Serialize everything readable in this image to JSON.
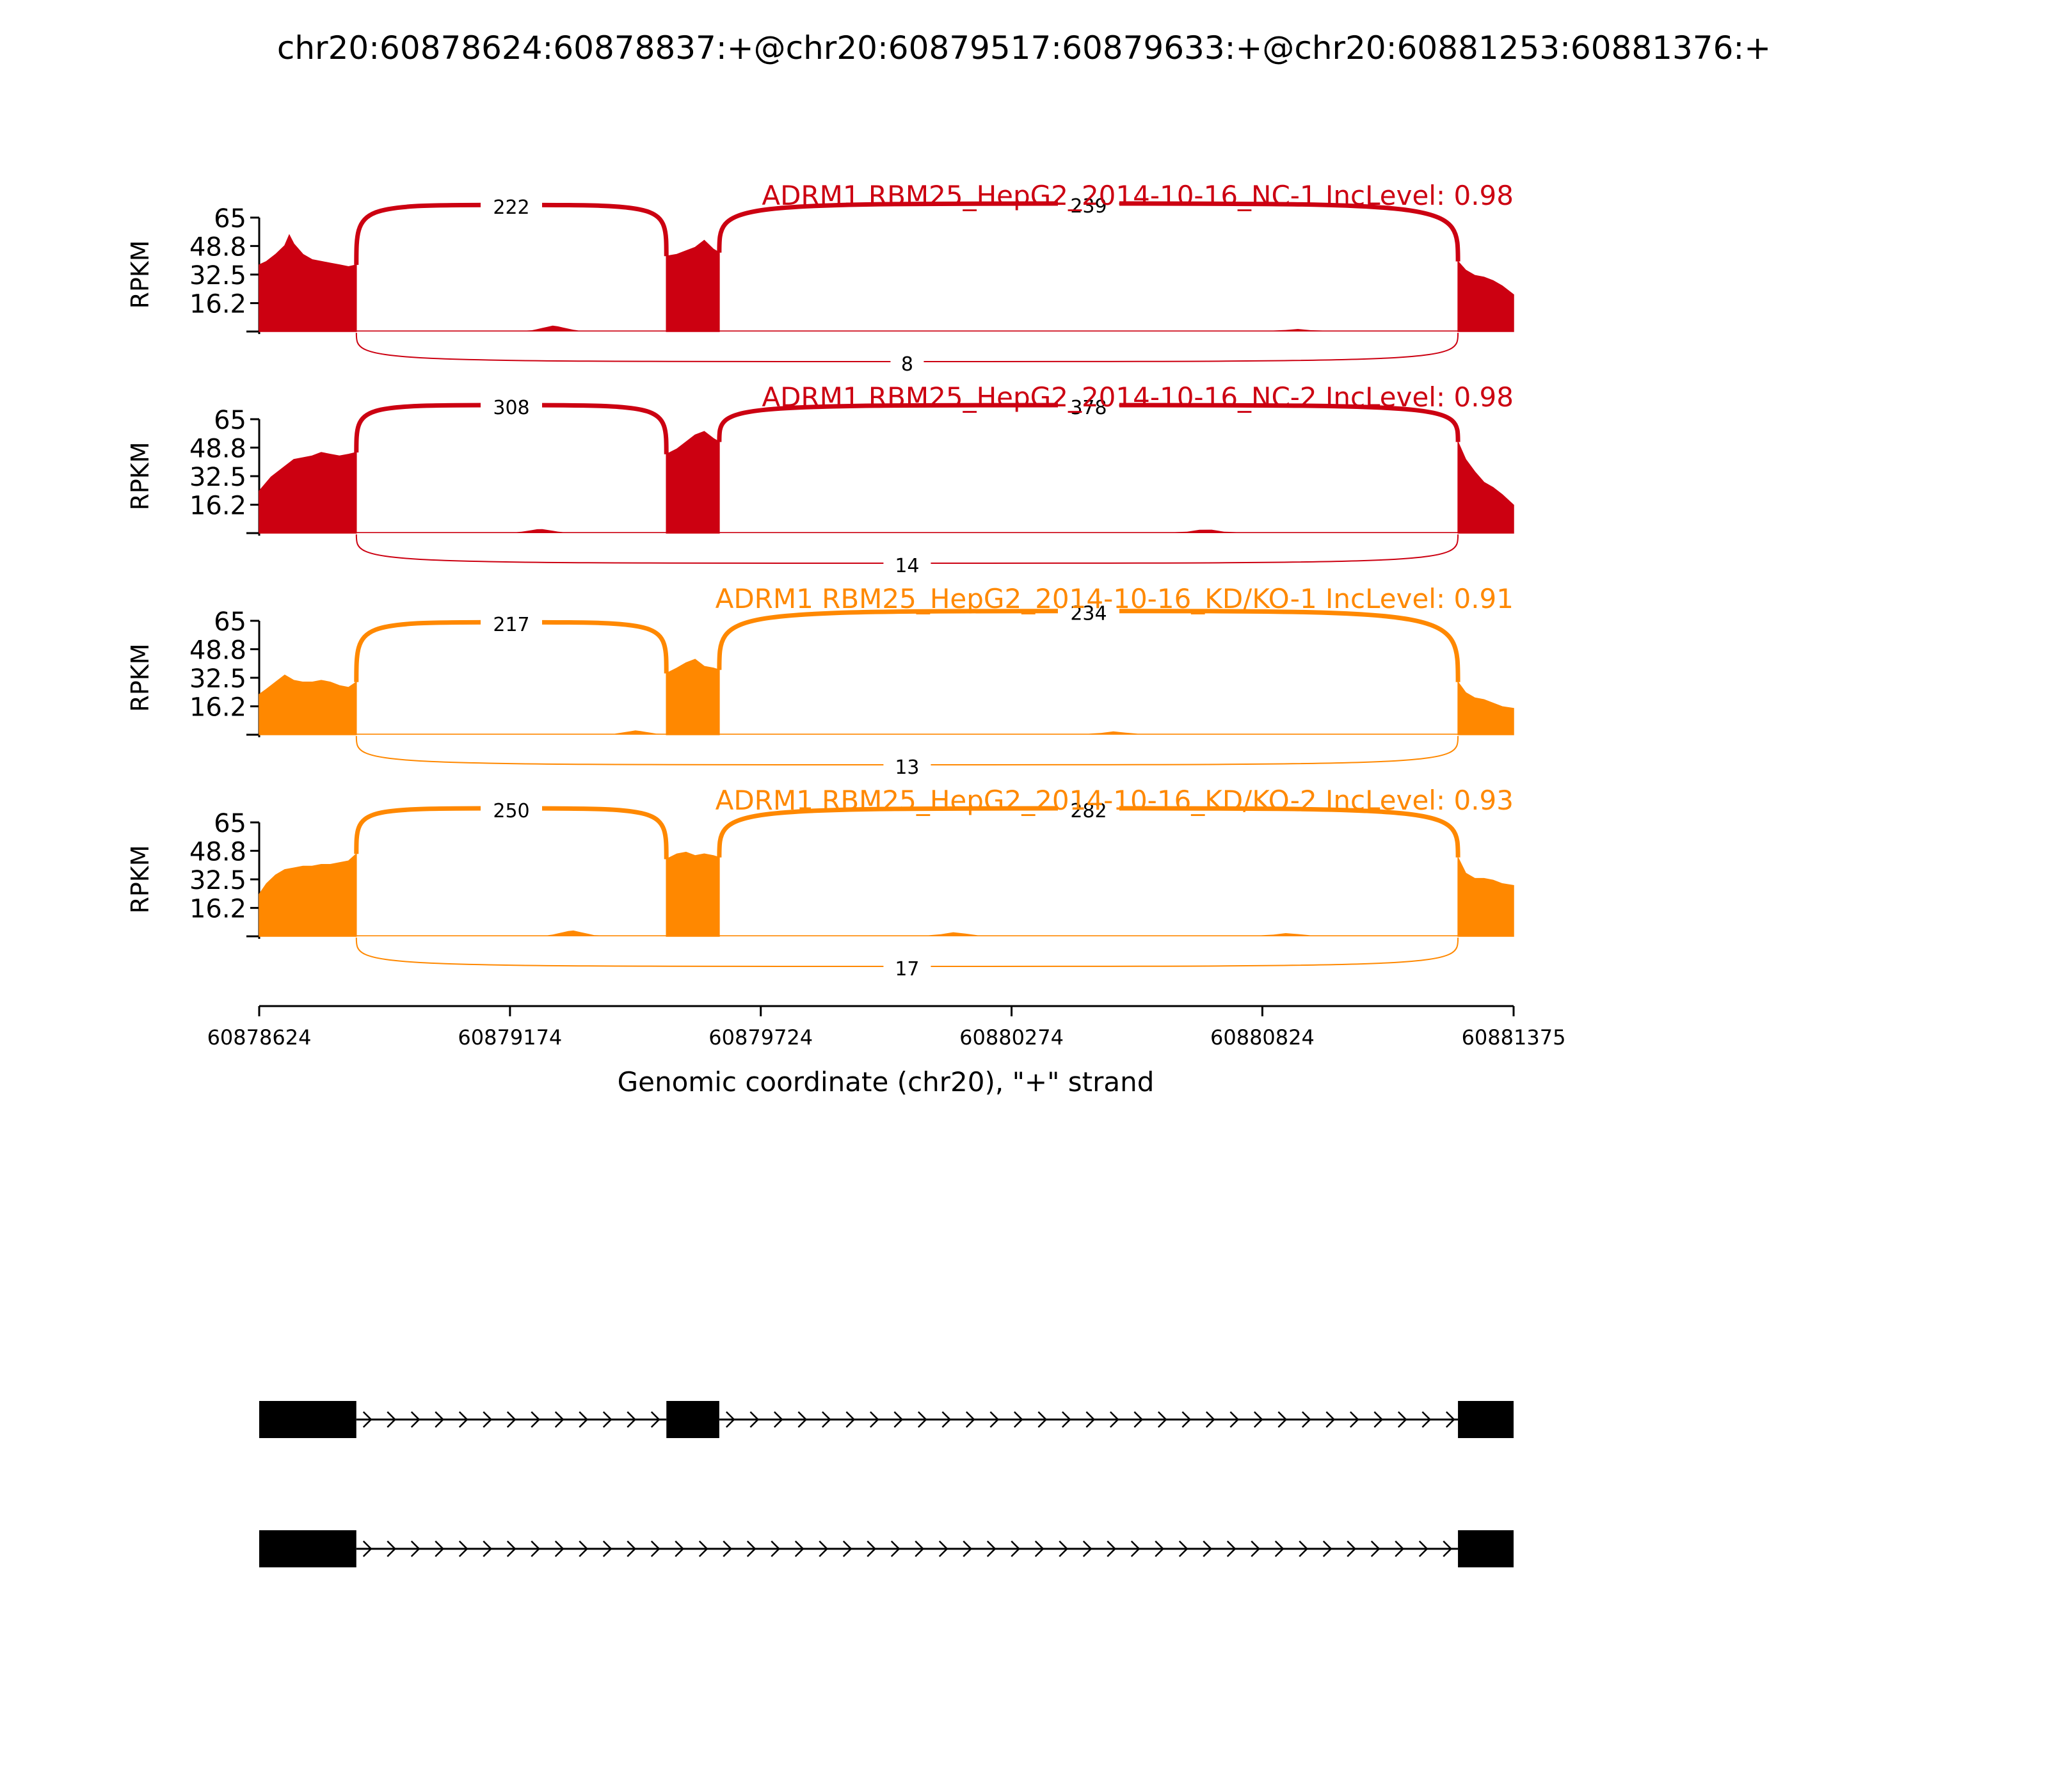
{
  "title": "chr20:60878624:60878837:+@chr20:60879517:60879633:+@chr20:60881253:60881376:+",
  "chart_data": {
    "type": "sashimi",
    "gene": "ADRM1",
    "x_range": [
      60878624,
      60881375
    ],
    "x_ticks": [
      60878624,
      60879174,
      60879724,
      60880274,
      60880824,
      60881375
    ],
    "xlabel": "Genomic coordinate (chr20), \"+\" strand",
    "ylabel": "RPKM",
    "y_ticks": [
      16.2,
      32.5,
      48.8,
      65
    ],
    "ylim": [
      0,
      65
    ],
    "exons": [
      [
        60878624,
        60878837
      ],
      [
        60879517,
        60879633
      ],
      [
        60881253,
        60881375
      ]
    ],
    "tracks": [
      {
        "label": "ADRM1 RBM25_HepG2_2014-10-16_NC-1 IncLevel: 0.98",
        "color": "#cc0011",
        "coverage": {
          "exon1": [
            [
              60878624,
              38
            ],
            [
              60878640,
              40
            ],
            [
              60878660,
              44
            ],
            [
              60878680,
              49
            ],
            [
              60878690,
              55
            ],
            [
              60878700,
              50
            ],
            [
              60878720,
              44
            ],
            [
              60878740,
              41
            ],
            [
              60878760,
              40
            ],
            [
              60878780,
              39
            ],
            [
              60878800,
              38
            ],
            [
              60878820,
              37
            ],
            [
              60878837,
              38
            ]
          ],
          "exon2": [
            [
              60879517,
              43
            ],
            [
              60879540,
              44
            ],
            [
              60879560,
              46
            ],
            [
              60879580,
              48
            ],
            [
              60879600,
              52
            ],
            [
              60879620,
              47
            ],
            [
              60879633,
              45
            ]
          ],
          "exon3": [
            [
              60881253,
              40
            ],
            [
              60881270,
              35
            ],
            [
              60881290,
              32
            ],
            [
              60881310,
              31
            ],
            [
              60881330,
              29
            ],
            [
              60881350,
              26
            ],
            [
              60881375,
              21
            ]
          ],
          "intron_bumps": [
            [
              60879270,
              3.5
            ],
            [
              60880900,
              1.5
            ]
          ]
        },
        "junctions": [
          {
            "from": 60878837,
            "to": 60879517,
            "count": 222,
            "side": "top"
          },
          {
            "from": 60879633,
            "to": 60881253,
            "count": 239,
            "side": "top"
          },
          {
            "from": 60878837,
            "to": 60881253,
            "count": 8,
            "side": "bottom"
          }
        ]
      },
      {
        "label": "ADRM1 RBM25_HepG2_2014-10-16_NC-2 IncLevel: 0.98",
        "color": "#cc0011",
        "coverage": {
          "exon1": [
            [
              60878624,
              24
            ],
            [
              60878650,
              32
            ],
            [
              60878680,
              38
            ],
            [
              60878700,
              42
            ],
            [
              60878720,
              43
            ],
            [
              60878740,
              44
            ],
            [
              60878760,
              46
            ],
            [
              60878780,
              45
            ],
            [
              60878800,
              44
            ],
            [
              60878820,
              45
            ],
            [
              60878837,
              46
            ]
          ],
          "exon2": [
            [
              60879517,
              45
            ],
            [
              60879540,
              48
            ],
            [
              60879560,
              52
            ],
            [
              60879580,
              56
            ],
            [
              60879600,
              58
            ],
            [
              60879620,
              54
            ],
            [
              60879633,
              52
            ]
          ],
          "exon3": [
            [
              60881253,
              52
            ],
            [
              60881270,
              42
            ],
            [
              60881290,
              35
            ],
            [
              60881310,
              29
            ],
            [
              60881330,
              26
            ],
            [
              60881350,
              22
            ],
            [
              60881375,
              16
            ]
          ],
          "intron_bumps": [
            [
              60879240,
              2.5
            ],
            [
              60880700,
              2.5
            ]
          ]
        },
        "junctions": [
          {
            "from": 60878837,
            "to": 60879517,
            "count": 308,
            "side": "top"
          },
          {
            "from": 60879633,
            "to": 60881253,
            "count": 378,
            "side": "top"
          },
          {
            "from": 60878837,
            "to": 60881253,
            "count": 14,
            "side": "bottom"
          }
        ]
      },
      {
        "label": "ADRM1 RBM25_HepG2_2014-10-16_KD/KO-1 IncLevel: 0.91",
        "color": "#ff8800",
        "coverage": {
          "exon1": [
            [
              60878624,
              23
            ],
            [
              60878640,
              26
            ],
            [
              60878660,
              30
            ],
            [
              60878680,
              34
            ],
            [
              60878700,
              31
            ],
            [
              60878720,
              30
            ],
            [
              60878740,
              30
            ],
            [
              60878760,
              31
            ],
            [
              60878780,
              30
            ],
            [
              60878800,
              28
            ],
            [
              60878820,
              27
            ],
            [
              60878837,
              30
            ]
          ],
          "exon2": [
            [
              60879517,
              35
            ],
            [
              60879540,
              38
            ],
            [
              60879560,
              41
            ],
            [
              60879580,
              43
            ],
            [
              60879600,
              39
            ],
            [
              60879620,
              38
            ],
            [
              60879633,
              37
            ]
          ],
          "exon3": [
            [
              60881253,
              30
            ],
            [
              60881270,
              24
            ],
            [
              60881290,
              21
            ],
            [
              60881310,
              20
            ],
            [
              60881330,
              18
            ],
            [
              60881350,
              16
            ],
            [
              60881375,
              15
            ]
          ],
          "intron_bumps": [
            [
              60879450,
              2.5
            ],
            [
              60880500,
              2
            ]
          ]
        },
        "junctions": [
          {
            "from": 60878837,
            "to": 60879517,
            "count": 217,
            "side": "top"
          },
          {
            "from": 60879633,
            "to": 60881253,
            "count": 234,
            "side": "top"
          },
          {
            "from": 60878837,
            "to": 60881253,
            "count": 13,
            "side": "bottom"
          }
        ]
      },
      {
        "label": "ADRM1 RBM25_HepG2_2014-10-16_KD/KO-2 IncLevel: 0.93",
        "color": "#ff8800",
        "coverage": {
          "exon1": [
            [
              60878624,
              24
            ],
            [
              60878640,
              30
            ],
            [
              60878660,
              35
            ],
            [
              60878680,
              38
            ],
            [
              60878700,
              39
            ],
            [
              60878720,
              40
            ],
            [
              60878740,
              40
            ],
            [
              60878760,
              41
            ],
            [
              60878780,
              41
            ],
            [
              60878800,
              42
            ],
            [
              60878820,
              43
            ],
            [
              60878837,
              47
            ]
          ],
          "exon2": [
            [
              60879517,
              44
            ],
            [
              60879540,
              47
            ],
            [
              60879560,
              48
            ],
            [
              60879580,
              46
            ],
            [
              60879600,
              47
            ],
            [
              60879620,
              46
            ],
            [
              60879633,
              45
            ]
          ],
          "exon3": [
            [
              60881253,
              45
            ],
            [
              60881270,
              36
            ],
            [
              60881290,
              33
            ],
            [
              60881310,
              33
            ],
            [
              60881330,
              32
            ],
            [
              60881350,
              30
            ],
            [
              60881375,
              29
            ]
          ],
          "intron_bumps": [
            [
              60879310,
              3.5
            ],
            [
              60880150,
              2.5
            ],
            [
              60880880,
              2
            ]
          ]
        },
        "junctions": [
          {
            "from": 60878837,
            "to": 60879517,
            "count": 250,
            "side": "top"
          },
          {
            "from": 60879633,
            "to": 60881253,
            "count": 282,
            "side": "top"
          },
          {
            "from": 60878837,
            "to": 60881253,
            "count": 17,
            "side": "bottom"
          }
        ]
      }
    ],
    "isoforms": [
      {
        "exons": [
          [
            60878624,
            60878837
          ],
          [
            60879517,
            60879633
          ],
          [
            60881253,
            60881375
          ]
        ]
      },
      {
        "exons": [
          [
            60878624,
            60878837
          ],
          [
            60881253,
            60881375
          ]
        ]
      }
    ]
  }
}
